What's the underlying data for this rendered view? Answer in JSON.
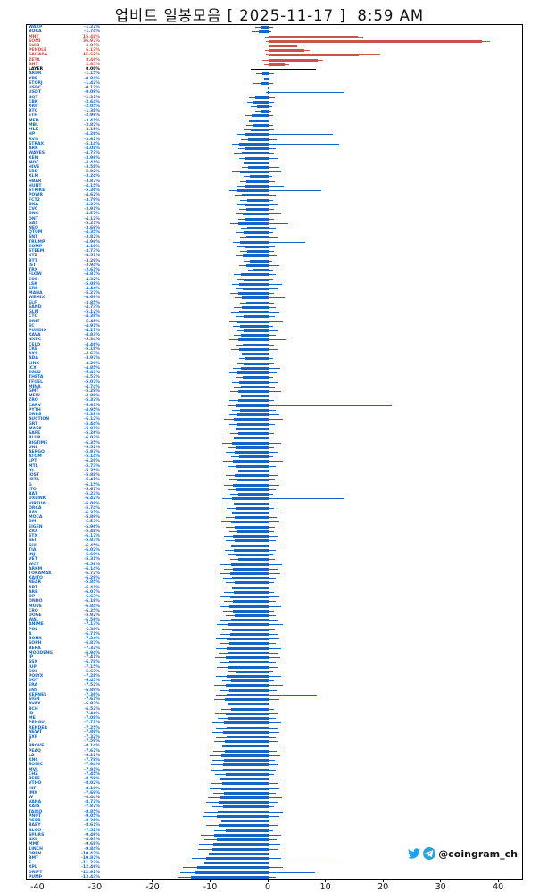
{
  "title": "업비트 일봉모음 [ 2025-11-17 ]  8:59 AM",
  "watermark": {
    "handle": "@coingram_ch",
    "twitter_color": "#1da1f2",
    "telegram_color": "#2aa3d7"
  },
  "axis": {
    "x_ticks": [
      -40,
      -30,
      -20,
      -10,
      0,
      10,
      20,
      30,
      40
    ]
  },
  "chart_data": {
    "type": "bar",
    "variant": "horizontal daily candlesticks, one row per Upbit KRW coin, body = daily change %, wick = low/high %",
    "title": "업비트 일봉모음 [ 2025-11-17 ]  8:59 AM",
    "xlabel": "daily change (%)",
    "ylabel": "",
    "xlim": [
      -42,
      44
    ],
    "grid": false,
    "legend": "none",
    "colors": {
      "up": "#c9524a",
      "down": "#1565c8",
      "flat": "#000000"
    },
    "columns": [
      "ticker",
      "change_pct",
      "low_pct",
      "high_pct"
    ],
    "rows": [
      [
        "WAXP",
        -1.22,
        -2.4,
        0.8
      ],
      [
        "BORA",
        -1.74,
        -2.9,
        0.5
      ],
      [
        "MNT",
        15.48,
        -0.6,
        16.4
      ],
      [
        "SOMI",
        36.97,
        -0.4,
        38.5
      ],
      [
        "SHIB",
        4.91,
        -0.9,
        5.8
      ],
      [
        "PENDLE",
        6.13,
        -0.7,
        7.1
      ],
      [
        "SAHARA",
        15.62,
        -0.5,
        19.3
      ],
      [
        "ZETA",
        8.46,
        -1.1,
        9.4
      ],
      [
        "AHT",
        2.85,
        -0.8,
        3.6
      ],
      [
        "LAYER",
        0.0,
        -3.1,
        8.2
      ],
      [
        "ARDR",
        -1.15,
        -2.2,
        0.9
      ],
      [
        "XPR",
        -0.84,
        -1.9,
        1.2
      ],
      [
        "STORJ",
        -1.42,
        -2.6,
        0.7
      ],
      [
        "USDC",
        -0.12,
        -0.5,
        0.4
      ],
      [
        "USDT",
        -0.09,
        -0.4,
        13.1
      ],
      [
        "AQT",
        -2.31,
        -3.4,
        1.1
      ],
      [
        "CBK",
        -2.64,
        -3.8,
        0.9
      ],
      [
        "XRP",
        -2.05,
        -3.1,
        0.6
      ],
      [
        "BTC",
        -1.38,
        -2.3,
        0.5
      ],
      [
        "ETH",
        -2.96,
        -4.0,
        0.7
      ],
      [
        "MED",
        -3.41,
        -4.6,
        1.3
      ],
      [
        "MBL",
        -2.87,
        -3.9,
        0.8
      ],
      [
        "MLK",
        -3.15,
        -4.3,
        1.0
      ],
      [
        "HP",
        -4.26,
        -5.5,
        11.2
      ],
      [
        "RVN",
        -3.62,
        -4.8,
        1.4
      ],
      [
        "STRAX",
        -5.14,
        -6.4,
        12.3
      ],
      [
        "ARK",
        -4.08,
        -5.3,
        1.2
      ],
      [
        "WAVES",
        -4.73,
        -6.0,
        0.9
      ],
      [
        "XEM",
        -3.96,
        -5.1,
        1.5
      ],
      [
        "MOC",
        -4.41,
        -5.6,
        0.8
      ],
      [
        "HIVE",
        -3.58,
        -4.7,
        1.9
      ],
      [
        "SBD",
        -5.02,
        -6.3,
        2.2
      ],
      [
        "XLM",
        -3.24,
        -4.4,
        0.6
      ],
      [
        "HBAR",
        -3.87,
        -5.0,
        1.1
      ],
      [
        "HUNT",
        -4.15,
        -5.4,
        2.6
      ],
      [
        "STRIKE",
        -5.36,
        -6.8,
        9.1
      ],
      [
        "POWR",
        -4.62,
        -5.9,
        1.3
      ],
      [
        "FCT2",
        -3.79,
        -4.9,
        0.7
      ],
      [
        "DKA",
        -4.23,
        -5.5,
        1.6
      ],
      [
        "CVC",
        -3.91,
        -5.1,
        1.0
      ],
      [
        "ONG",
        -4.57,
        -5.8,
        2.1
      ],
      [
        "ONT",
        -4.12,
        -5.3,
        0.9
      ],
      [
        "GAS",
        -5.21,
        -6.6,
        3.4
      ],
      [
        "NEO",
        -3.68,
        -4.8,
        1.2
      ],
      [
        "QTUM",
        -4.35,
        -5.6,
        0.8
      ],
      [
        "SNT",
        -3.82,
        -5.0,
        1.7
      ],
      [
        "TRUMP",
        -4.96,
        -6.2,
        6.3
      ],
      [
        "COMP",
        -4.18,
        -5.4,
        1.1
      ],
      [
        "STEEM",
        -3.73,
        -4.9,
        0.9
      ],
      [
        "XTZ",
        -4.51,
        -5.8,
        1.4
      ],
      [
        "BTT",
        -3.29,
        -4.4,
        0.6
      ],
      [
        "JST",
        -3.94,
        -5.1,
        1.8
      ],
      [
        "TRX",
        -2.61,
        -3.6,
        0.7
      ],
      [
        "FLOW",
        -4.87,
        -6.1,
        1.2
      ],
      [
        "EOS",
        -4.32,
        -5.5,
        0.8
      ],
      [
        "LSK",
        -5.08,
        -6.4,
        2.3
      ],
      [
        "GRS",
        -4.44,
        -5.7,
        1.5
      ],
      [
        "MANA",
        -5.27,
        -6.6,
        1.0
      ],
      [
        "WEMIX",
        -4.69,
        -5.9,
        2.8
      ],
      [
        "ELF",
        -3.85,
        -5.0,
        0.9
      ],
      [
        "SAND",
        -4.73,
        -6.0,
        1.3
      ],
      [
        "GLM",
        -5.12,
        -6.5,
        1.9
      ],
      [
        "CTC",
        -4.38,
        -5.6,
        1.1
      ],
      [
        "ONIT",
        -5.45,
        -6.9,
        2.4
      ],
      [
        "SC",
        -4.91,
        -6.2,
        0.8
      ],
      [
        "PUNDIX",
        -4.27,
        -5.5,
        1.6
      ],
      [
        "KAVA",
        -4.83,
        -6.1,
        1.2
      ],
      [
        "NXPC",
        -5.34,
        -6.8,
        3.1
      ],
      [
        "CELO",
        -4.46,
        -5.7,
        0.9
      ],
      [
        "CKB",
        -5.18,
        -6.5,
        1.7
      ],
      [
        "AXS",
        -4.62,
        -5.9,
        1.3
      ],
      [
        "ADA",
        -3.97,
        -5.1,
        0.7
      ],
      [
        "LINK",
        -4.29,
        -5.5,
        1.0
      ],
      [
        "ICX",
        -4.85,
        -6.2,
        2.0
      ],
      [
        "EGLD",
        -5.41,
        -6.9,
        1.4
      ],
      [
        "THETA",
        -4.53,
        -5.8,
        0.8
      ],
      [
        "TFUEL",
        -5.07,
        -6.4,
        1.6
      ],
      [
        "MINA",
        -4.74,
        -6.0,
        1.1
      ],
      [
        "GMT",
        -5.29,
        -6.7,
        2.2
      ],
      [
        "MEW",
        -4.86,
        -6.2,
        1.5
      ],
      [
        "ZRO",
        -5.33,
        -6.8,
        0.9
      ],
      [
        "CARV",
        -5.61,
        -7.1,
        21.4
      ],
      [
        "PYTH",
        -4.95,
        -6.3,
        1.2
      ],
      [
        "ORBS",
        -5.38,
        -6.8,
        1.8
      ],
      [
        "AUCTION",
        -6.12,
        -7.7,
        2.5
      ],
      [
        "GRT",
        -5.44,
        -6.9,
        1.1
      ],
      [
        "MASK",
        -5.81,
        -7.3,
        1.6
      ],
      [
        "SAFE",
        -5.26,
        -6.7,
        0.9
      ],
      [
        "BLUR",
        -6.03,
        -7.6,
        1.4
      ],
      [
        "BIGTIME",
        -6.35,
        -8.0,
        2.1
      ],
      [
        "UNI",
        -5.52,
        -7.0,
        1.0
      ],
      [
        "AERGO",
        -5.97,
        -7.5,
        1.7
      ],
      [
        "ATOM",
        -5.14,
        -6.5,
        0.8
      ],
      [
        "LPT",
        -6.28,
        -7.9,
        2.4
      ],
      [
        "MTL",
        -5.73,
        -7.2,
        1.3
      ],
      [
        "IQ",
        -5.35,
        -6.8,
        0.9
      ],
      [
        "IOST",
        -5.88,
        -7.4,
        1.5
      ],
      [
        "IOTA",
        -5.41,
        -6.9,
        1.1
      ],
      [
        "G",
        -6.15,
        -7.8,
        1.9
      ],
      [
        "JTO",
        -5.67,
        -7.2,
        1.2
      ],
      [
        "BAT",
        -5.23,
        -6.6,
        0.8
      ],
      [
        "UXLINK",
        -6.42,
        -8.1,
        13.1
      ],
      [
        "VIRTUAL",
        -6.08,
        -7.7,
        1.6
      ],
      [
        "ORCA",
        -5.74,
        -7.3,
        1.0
      ],
      [
        "RAY",
        -6.31,
        -8.0,
        2.2
      ],
      [
        "MOCA",
        -5.89,
        -7.4,
        1.4
      ],
      [
        "OM",
        -6.53,
        -8.2,
        1.8
      ],
      [
        "EIGEN",
        -5.96,
        -7.5,
        1.1
      ],
      [
        "ZRX",
        -5.48,
        -6.9,
        0.9
      ],
      [
        "STX",
        -6.17,
        -7.8,
        1.5
      ],
      [
        "SEI",
        -5.83,
        -7.4,
        1.2
      ],
      [
        "SUI",
        -6.45,
        -8.1,
        1.9
      ],
      [
        "TIA",
        -6.02,
        -7.6,
        1.3
      ],
      [
        "INJ",
        -5.69,
        -7.2,
        0.8
      ],
      [
        "VET",
        -5.31,
        -6.7,
        1.1
      ],
      [
        "WCT",
        -6.58,
        -8.3,
        2.3
      ],
      [
        "ARKM",
        -6.14,
        -7.8,
        1.6
      ],
      [
        "TOKAMAK",
        -6.72,
        -8.5,
        2.0
      ],
      [
        "KAITO",
        -6.29,
        -7.9,
        1.2
      ],
      [
        "NEAR",
        -5.85,
        -7.4,
        0.9
      ],
      [
        "APT",
        -6.41,
        -8.1,
        1.5
      ],
      [
        "ARB",
        -6.07,
        -7.7,
        1.0
      ],
      [
        "OP",
        -6.63,
        -8.4,
        1.8
      ],
      [
        "ONDO",
        -6.18,
        -7.8,
        1.3
      ],
      [
        "MOVE",
        -6.84,
        -8.6,
        2.1
      ],
      [
        "CRO",
        -6.25,
        -7.9,
        0.9
      ],
      [
        "DOGE",
        -5.92,
        -7.5,
        1.2
      ],
      [
        "WAL",
        -6.56,
        -8.3,
        1.7
      ],
      [
        "ANIME",
        -7.13,
        -9.0,
        2.4
      ],
      [
        "POL",
        -6.38,
        -8.0,
        1.1
      ],
      [
        "A",
        -6.71,
        -8.4,
        1.5
      ],
      [
        "BONK",
        -7.24,
        -9.1,
        1.9
      ],
      [
        "SOPH",
        -6.87,
        -8.6,
        1.3
      ],
      [
        "BERA",
        -7.32,
        -9.2,
        2.2
      ],
      [
        "MOODENG",
        -6.94,
        -8.7,
        1.6
      ],
      [
        "IP",
        -7.41,
        -9.3,
        2.0
      ],
      [
        "SSX",
        -6.78,
        -8.5,
        1.2
      ],
      [
        "JUP",
        -7.15,
        -9.0,
        1.7
      ],
      [
        "SOL",
        -5.63,
        -7.1,
        0.8
      ],
      [
        "POLYX",
        -7.28,
        -9.1,
        2.1
      ],
      [
        "DOT",
        -6.45,
        -8.1,
        1.0
      ],
      [
        "ERA",
        -7.52,
        -9.4,
        2.5
      ],
      [
        "ENS",
        -6.89,
        -8.6,
        1.4
      ],
      [
        "KERNEL",
        -7.36,
        -9.2,
        8.3
      ],
      [
        "SIGN",
        -7.61,
        -9.5,
        1.8
      ],
      [
        "AVAX",
        -6.97,
        -8.7,
        1.1
      ],
      [
        "BCH",
        -6.52,
        -8.2,
        0.9
      ],
      [
        "ID",
        -7.44,
        -9.3,
        1.6
      ],
      [
        "ME",
        -7.08,
        -8.9,
        1.3
      ],
      [
        "PENGU",
        -7.73,
        -9.7,
        2.2
      ],
      [
        "RENDER",
        -7.25,
        -9.1,
        1.5
      ],
      [
        "NEWT",
        -7.86,
        -9.8,
        1.9
      ],
      [
        "SXP",
        -7.32,
        -9.2,
        1.2
      ],
      [
        "T",
        -7.59,
        -9.5,
        1.7
      ],
      [
        "PROVE",
        -8.14,
        -10.2,
        2.4
      ],
      [
        "PEAQ",
        -7.67,
        -9.6,
        1.4
      ],
      [
        "LA",
        -8.22,
        -10.3,
        2.0
      ],
      [
        "KNC",
        -7.78,
        -9.7,
        1.1
      ],
      [
        "SONIC",
        -7.94,
        -9.9,
        1.6
      ],
      [
        "MVL",
        -7.91,
        -9.9,
        1.3
      ],
      [
        "CHZ",
        -7.45,
        -9.3,
        0.9
      ],
      [
        "PEPE",
        -8.58,
        -10.7,
        2.1
      ],
      [
        "VTHO",
        -8.02,
        -10.0,
        1.5
      ],
      [
        "HIFI",
        -8.18,
        -10.2,
        1.8
      ],
      [
        "IMX",
        -7.69,
        -9.6,
        1.2
      ],
      [
        "W",
        -8.44,
        -10.6,
        2.3
      ],
      [
        "VANA",
        -8.72,
        -10.9,
        1.7
      ],
      [
        "KAIA",
        -7.87,
        -9.8,
        1.0
      ],
      [
        "TAIKO",
        -8.85,
        -11.1,
        2.5
      ],
      [
        "PNUT",
        -9.05,
        -11.3,
        1.9
      ],
      [
        "DEEP",
        -8.26,
        -10.3,
        1.3
      ],
      [
        "BABY",
        -8.61,
        -10.8,
        1.6
      ],
      [
        "ALGO",
        -7.52,
        -9.4,
        0.8
      ],
      [
        "SPURS",
        -9.46,
        -11.8,
        2.2
      ],
      [
        "AXL",
        -8.93,
        -11.2,
        1.4
      ],
      [
        "MMT",
        -9.68,
        -12.1,
        2.0
      ],
      [
        "1INCH",
        -9.84,
        -12.3,
        1.5
      ],
      [
        "OPEN",
        -10.42,
        -12.8,
        1.8
      ],
      [
        "BMT",
        -10.87,
        -13.3,
        2.1
      ],
      [
        "F",
        -11.23,
        -13.7,
        11.6
      ],
      [
        "XPL",
        -12.46,
        -14.9,
        2.4
      ],
      [
        "DRIFT",
        -12.92,
        -15.3,
        8.1
      ],
      [
        "PUMP",
        -13.43,
        -15.8,
        1.2
      ]
    ]
  }
}
